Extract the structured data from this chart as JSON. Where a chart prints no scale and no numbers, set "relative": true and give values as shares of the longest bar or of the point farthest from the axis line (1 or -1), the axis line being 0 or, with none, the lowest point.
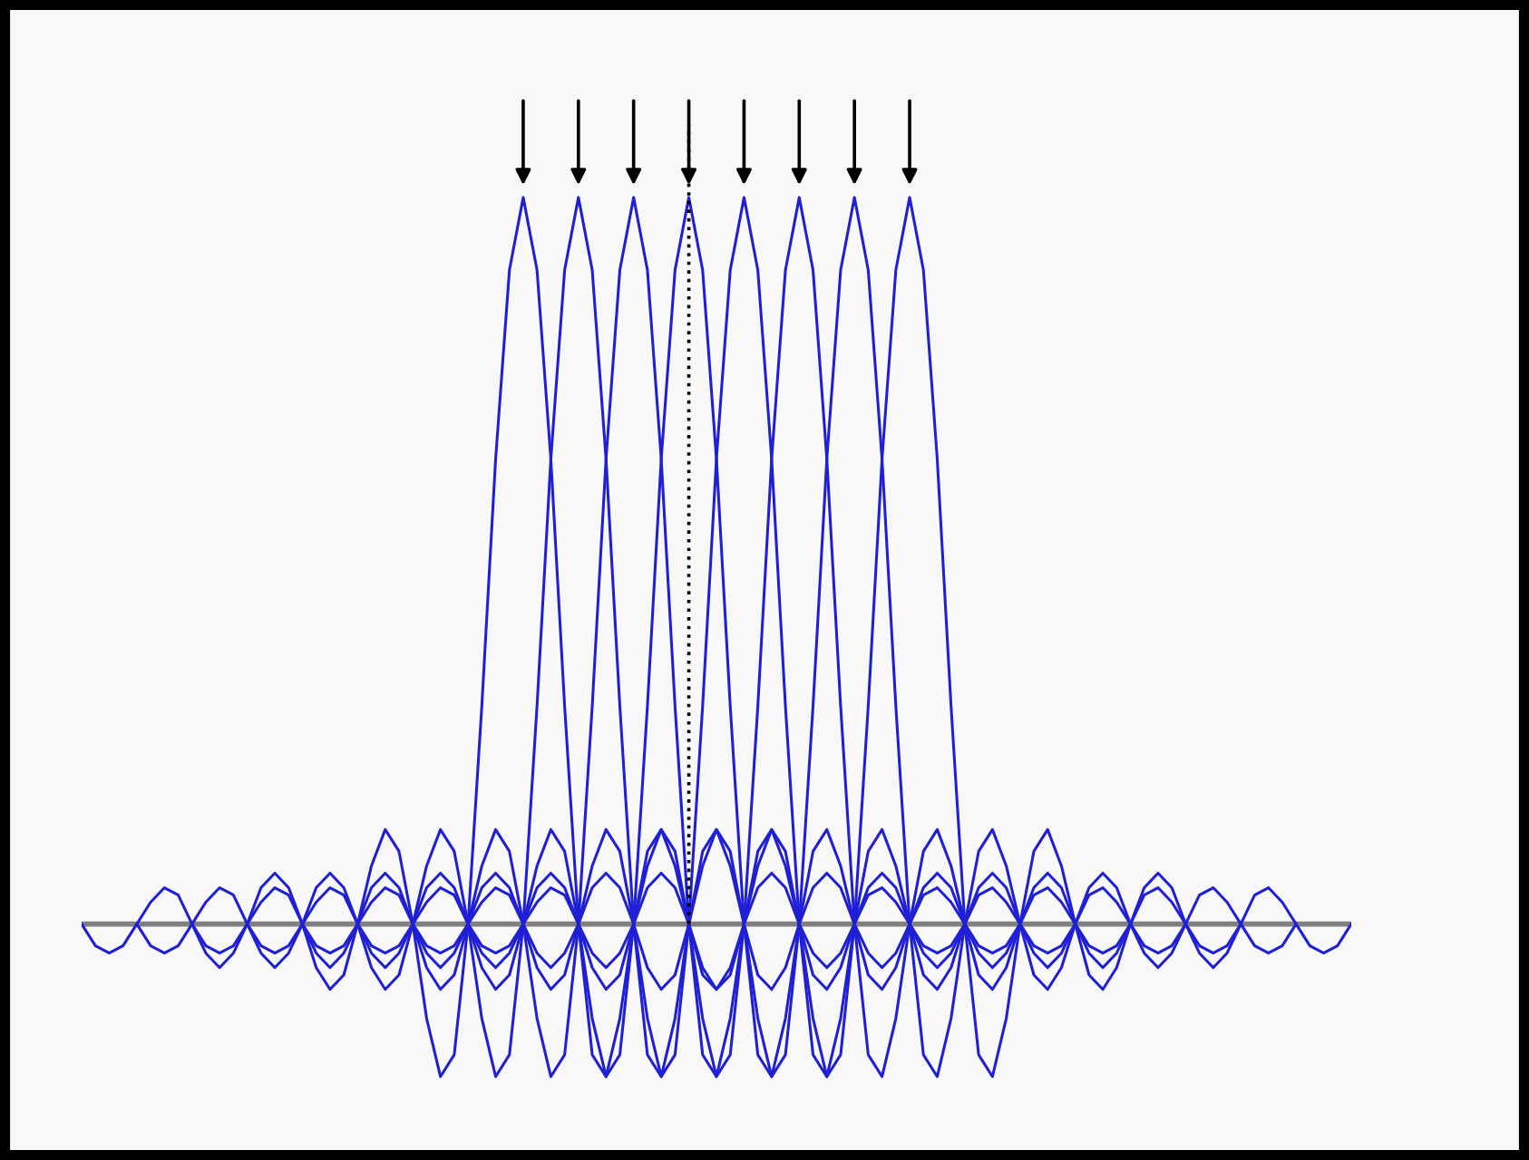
{
  "chart_data": {
    "type": "line",
    "relative": true,
    "tick_labels": false,
    "marker": "none",
    "line_style": "solid",
    "categories": [
      null,
      null,
      null,
      null,
      null,
      null,
      null,
      null,
      null,
      null,
      null,
      null,
      null,
      null,
      null,
      null,
      null,
      null,
      null,
      null,
      null,
      null,
      null,
      null,
      null,
      null,
      null,
      null,
      null,
      null,
      null,
      null,
      null,
      null,
      null,
      null,
      null,
      null,
      null,
      null,
      null,
      null,
      null,
      null,
      null,
      null,
      null,
      null,
      null,
      null,
      null,
      null,
      null,
      null,
      null,
      null,
      null,
      null,
      null,
      null,
      null,
      null,
      null,
      null,
      null,
      null,
      null,
      null,
      null,
      null,
      null,
      null,
      null,
      null,
      null,
      null,
      null,
      null,
      null,
      null,
      null,
      null,
      null,
      null,
      null,
      null,
      null,
      null,
      null,
      null,
      null,
      null,
      null
    ],
    "series": [
      {
        "color": "#1f1fd6",
        "values": [
          0,
          -0.03,
          -0.04,
          -0.03,
          0,
          0.03,
          0.05,
          0.04,
          0,
          -0.04,
          -0.06,
          -0.04,
          0,
          0.05,
          0.07,
          0.05,
          0,
          -0.06,
          -0.09,
          -0.07,
          0,
          0.08,
          0.13,
          0.1,
          0,
          -0.13,
          -0.21,
          -0.18,
          0,
          0.3,
          0.64,
          0.9,
          1,
          0.9,
          0.64,
          0.3,
          0,
          -0.18,
          -0.21,
          -0.13,
          0,
          0.1,
          0.13,
          0.08,
          0,
          -0.07,
          -0.09,
          -0.06,
          0,
          0.05,
          0.07,
          0.05,
          0,
          -0.04,
          -0.06,
          -0.04,
          0,
          0.04,
          0.05,
          0.03,
          0,
          -0.03,
          -0.04,
          -0.03,
          0,
          null,
          null,
          null,
          null,
          null,
          null,
          null,
          null,
          null,
          null,
          null,
          null,
          null,
          null,
          null,
          null,
          null,
          null,
          null,
          null,
          null,
          null,
          null,
          null,
          null,
          null,
          null,
          null
        ]
      },
      {
        "color": "#1f1fd6",
        "values": [
          null,
          null,
          null,
          null,
          0,
          -0.03,
          -0.04,
          -0.03,
          0,
          0.03,
          0.05,
          0.04,
          0,
          -0.04,
          -0.06,
          -0.04,
          0,
          0.05,
          0.07,
          0.05,
          0,
          -0.06,
          -0.09,
          -0.07,
          0,
          0.08,
          0.13,
          0.1,
          0,
          -0.13,
          -0.21,
          -0.18,
          0,
          0.3,
          0.64,
          0.9,
          1,
          0.9,
          0.64,
          0.3,
          0,
          -0.18,
          -0.21,
          -0.13,
          0,
          0.1,
          0.13,
          0.08,
          0,
          -0.07,
          -0.09,
          -0.06,
          0,
          0.05,
          0.07,
          0.05,
          0,
          -0.04,
          -0.06,
          -0.04,
          0,
          0.04,
          0.05,
          0.03,
          0,
          -0.03,
          -0.04,
          -0.03,
          0,
          null,
          null,
          null,
          null,
          null,
          null,
          null,
          null,
          null,
          null,
          null,
          null,
          null,
          null,
          null,
          null,
          null,
          null,
          null,
          null,
          null,
          null,
          null,
          null
        ]
      },
      {
        "color": "#1f1fd6",
        "values": [
          null,
          null,
          null,
          null,
          null,
          null,
          null,
          null,
          0,
          -0.03,
          -0.04,
          -0.03,
          0,
          0.03,
          0.05,
          0.04,
          0,
          -0.04,
          -0.06,
          -0.04,
          0,
          0.05,
          0.07,
          0.05,
          0,
          -0.06,
          -0.09,
          -0.07,
          0,
          0.08,
          0.13,
          0.1,
          0,
          -0.13,
          -0.21,
          -0.18,
          0,
          0.3,
          0.64,
          0.9,
          1,
          0.9,
          0.64,
          0.3,
          0,
          -0.18,
          -0.21,
          -0.13,
          0,
          0.1,
          0.13,
          0.08,
          0,
          -0.07,
          -0.09,
          -0.06,
          0,
          0.05,
          0.07,
          0.05,
          0,
          -0.04,
          -0.06,
          -0.04,
          0,
          0.04,
          0.05,
          0.03,
          0,
          -0.03,
          -0.04,
          -0.03,
          0,
          null,
          null,
          null,
          null,
          null,
          null,
          null,
          null,
          null,
          null,
          null,
          null,
          null,
          null,
          null,
          null,
          null,
          null,
          null,
          null
        ]
      },
      {
        "color": "#1f1fd6",
        "values": [
          null,
          null,
          null,
          null,
          null,
          null,
          null,
          null,
          null,
          null,
          null,
          null,
          0,
          -0.03,
          -0.04,
          -0.03,
          0,
          0.03,
          0.05,
          0.04,
          0,
          -0.04,
          -0.06,
          -0.04,
          0,
          0.05,
          0.07,
          0.05,
          0,
          -0.06,
          -0.09,
          -0.07,
          0,
          0.08,
          0.13,
          0.1,
          0,
          -0.13,
          -0.21,
          -0.18,
          0,
          0.3,
          0.64,
          0.9,
          1,
          0.9,
          0.64,
          0.3,
          0,
          -0.18,
          -0.21,
          -0.13,
          0,
          0.1,
          0.13,
          0.08,
          0,
          -0.07,
          -0.09,
          -0.06,
          0,
          0.05,
          0.07,
          0.05,
          0,
          -0.04,
          -0.06,
          -0.04,
          0,
          0.04,
          0.05,
          0.03,
          0,
          -0.03,
          -0.04,
          -0.03,
          0,
          null,
          null,
          null,
          null,
          null,
          null,
          null,
          null,
          null,
          null,
          null,
          null,
          null,
          null,
          null,
          null
        ]
      },
      {
        "color": "#1f1fd6",
        "values": [
          null,
          null,
          null,
          null,
          null,
          null,
          null,
          null,
          null,
          null,
          null,
          null,
          null,
          null,
          null,
          null,
          0,
          -0.03,
          -0.04,
          -0.03,
          0,
          0.03,
          0.05,
          0.04,
          0,
          -0.04,
          -0.06,
          -0.04,
          0,
          0.05,
          0.07,
          0.05,
          0,
          -0.06,
          -0.09,
          -0.07,
          0,
          0.08,
          0.13,
          0.1,
          0,
          -0.13,
          -0.21,
          -0.18,
          0,
          0.3,
          0.64,
          0.9,
          1,
          0.9,
          0.64,
          0.3,
          0,
          -0.18,
          -0.21,
          -0.13,
          0,
          0.1,
          0.13,
          0.08,
          0,
          -0.07,
          -0.09,
          -0.06,
          0,
          0.05,
          0.07,
          0.05,
          0,
          -0.04,
          -0.06,
          -0.04,
          0,
          0.04,
          0.05,
          0.03,
          0,
          -0.03,
          -0.04,
          -0.03,
          0,
          null,
          null,
          null,
          null,
          null,
          null,
          null,
          null,
          null,
          null,
          null,
          null
        ]
      },
      {
        "color": "#1f1fd6",
        "values": [
          null,
          null,
          null,
          null,
          null,
          null,
          null,
          null,
          null,
          null,
          null,
          null,
          null,
          null,
          null,
          null,
          null,
          null,
          null,
          null,
          0,
          -0.03,
          -0.04,
          -0.03,
          0,
          0.03,
          0.05,
          0.04,
          0,
          -0.04,
          -0.06,
          -0.04,
          0,
          0.05,
          0.07,
          0.05,
          0,
          -0.06,
          -0.09,
          -0.07,
          0,
          0.08,
          0.13,
          0.1,
          0,
          -0.13,
          -0.21,
          -0.18,
          0,
          0.3,
          0.64,
          0.9,
          1,
          0.9,
          0.64,
          0.3,
          0,
          -0.18,
          -0.21,
          -0.13,
          0,
          0.1,
          0.13,
          0.08,
          0,
          -0.07,
          -0.09,
          -0.06,
          0,
          0.05,
          0.07,
          0.05,
          0,
          -0.04,
          -0.06,
          -0.04,
          0,
          0.04,
          0.05,
          0.03,
          0,
          -0.03,
          -0.04,
          -0.03,
          0,
          null,
          null,
          null,
          null,
          null,
          null,
          null,
          null
        ]
      },
      {
        "color": "#1f1fd6",
        "values": [
          null,
          null,
          null,
          null,
          null,
          null,
          null,
          null,
          null,
          null,
          null,
          null,
          null,
          null,
          null,
          null,
          null,
          null,
          null,
          null,
          null,
          null,
          null,
          null,
          0,
          -0.03,
          -0.04,
          -0.03,
          0,
          0.03,
          0.05,
          0.04,
          0,
          -0.04,
          -0.06,
          -0.04,
          0,
          0.05,
          0.07,
          0.05,
          0,
          -0.06,
          -0.09,
          -0.07,
          0,
          0.08,
          0.13,
          0.1,
          0,
          -0.13,
          -0.21,
          -0.18,
          0,
          0.3,
          0.64,
          0.9,
          1,
          0.9,
          0.64,
          0.3,
          0,
          -0.18,
          -0.21,
          -0.13,
          0,
          0.1,
          0.13,
          0.08,
          0,
          -0.07,
          -0.09,
          -0.06,
          0,
          0.05,
          0.07,
          0.05,
          0,
          -0.04,
          -0.06,
          -0.04,
          0,
          0.04,
          0.05,
          0.03,
          0,
          -0.03,
          -0.04,
          -0.03,
          0,
          null,
          null,
          null,
          null
        ]
      },
      {
        "color": "#1f1fd6",
        "values": [
          null,
          null,
          null,
          null,
          null,
          null,
          null,
          null,
          null,
          null,
          null,
          null,
          null,
          null,
          null,
          null,
          null,
          null,
          null,
          null,
          null,
          null,
          null,
          null,
          null,
          null,
          null,
          null,
          0,
          -0.03,
          -0.04,
          -0.03,
          0,
          0.03,
          0.05,
          0.04,
          0,
          -0.04,
          -0.06,
          -0.04,
          0,
          0.05,
          0.07,
          0.05,
          0,
          -0.06,
          -0.09,
          -0.07,
          0,
          0.08,
          0.13,
          0.1,
          0,
          -0.13,
          -0.21,
          -0.18,
          0,
          0.3,
          0.64,
          0.9,
          1,
          0.9,
          0.64,
          0.3,
          0,
          -0.18,
          -0.21,
          -0.13,
          0,
          0.1,
          0.13,
          0.08,
          0,
          -0.07,
          -0.09,
          -0.06,
          0,
          0.05,
          0.07,
          0.05,
          0,
          -0.04,
          -0.06,
          -0.04,
          0,
          0.04,
          0.05,
          0.03,
          0,
          -0.03,
          -0.04,
          -0.03,
          0
        ]
      }
    ]
  }
}
